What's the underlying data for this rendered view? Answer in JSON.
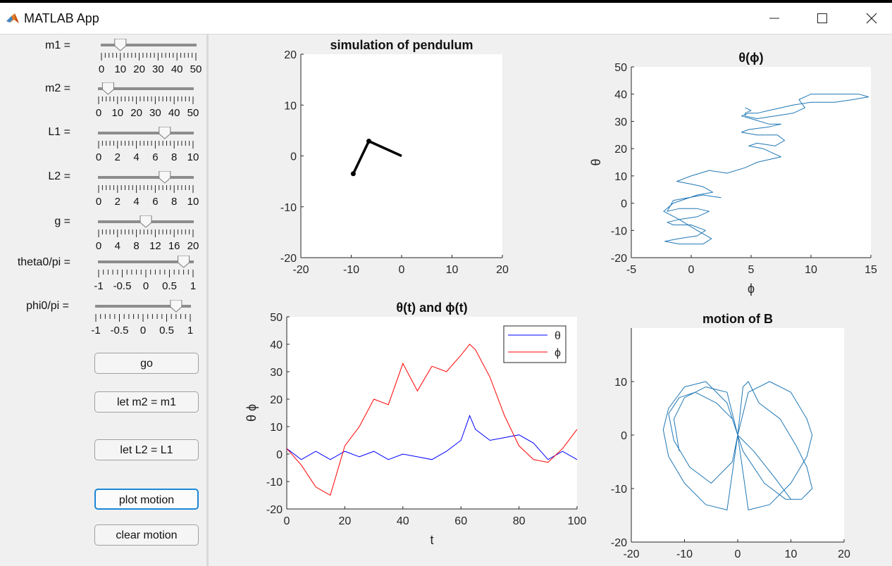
{
  "window": {
    "title": "MATLAB App"
  },
  "controls": {
    "sliders": [
      {
        "label": "m1 =",
        "value": 10,
        "min": 0,
        "max": 50,
        "ticks": [
          "0",
          "10",
          "20",
          "30",
          "40",
          "50"
        ]
      },
      {
        "label": "m2 =",
        "value": 5,
        "min": 0,
        "max": 50,
        "ticks": [
          "0",
          "10",
          "20",
          "30",
          "40",
          "50"
        ]
      },
      {
        "label": "L1 =",
        "value": 7,
        "min": 0,
        "max": 10,
        "ticks": [
          "0",
          "2",
          "4",
          "6",
          "8",
          "10"
        ]
      },
      {
        "label": "L2 =",
        "value": 7,
        "min": 0,
        "max": 10,
        "ticks": [
          "0",
          "2",
          "4",
          "6",
          "8",
          "10"
        ]
      },
      {
        "label": "g =",
        "value": 10,
        "min": 0,
        "max": 20,
        "ticks": [
          "0",
          "4",
          "8",
          "12",
          "16",
          "20"
        ]
      },
      {
        "label": "theta0/pi =",
        "value": 0.8,
        "min": -1,
        "max": 1,
        "ticks": [
          "-1",
          "-0.5",
          "0",
          "0.5",
          "1"
        ]
      },
      {
        "label": "phi0/pi =",
        "value": 0.7,
        "min": -1,
        "max": 1,
        "ticks": [
          "-1",
          "-0.5",
          "0",
          "0.5",
          "1"
        ]
      }
    ],
    "buttons": {
      "go": "go",
      "let_m2": "let m2 = m1",
      "let_l2": "let L2 = L1",
      "plot_motion": "plot motion",
      "clear_motion": "clear motion"
    }
  },
  "chart_data": [
    {
      "type": "line",
      "title": "simulation of pendulum",
      "xlim": [
        -20,
        20
      ],
      "ylim": [
        -20,
        20
      ],
      "xticks": [
        "-20",
        "-10",
        "0",
        "10",
        "20"
      ],
      "yticks": [
        "-20",
        "-10",
        "0",
        "10",
        "20"
      ],
      "x": [
        0,
        -6.5,
        -9.6
      ],
      "y": [
        0,
        2.9,
        -3.5
      ]
    },
    {
      "type": "line",
      "title": "θ(ϕ)",
      "xlabel": "ϕ",
      "ylabel": "θ",
      "xlim": [
        -5,
        15
      ],
      "ylim": [
        -20,
        50
      ],
      "xticks": [
        "-5",
        "0",
        "5",
        "10",
        "15"
      ],
      "yticks": [
        "-20",
        "-10",
        "0",
        "10",
        "20",
        "30",
        "40",
        "50"
      ],
      "x": [
        2.5,
        1.0,
        -1.5,
        -2.0,
        -1.0,
        0.5,
        1.5,
        0.5,
        -1.0,
        -2.0,
        -1.5,
        0,
        1.2,
        0.5,
        -1.0,
        -2.2,
        -1.0,
        1.0,
        1.7,
        0.5,
        -1.0,
        -2.3,
        -1.5,
        0.5,
        1.8,
        1.0,
        0,
        -1.2,
        0,
        1.5,
        3.0,
        4.5,
        5.0,
        5.5,
        6.5,
        7.5,
        7.0,
        6.0,
        4.8,
        5.5,
        7.0,
        7.8,
        7.2,
        5.5,
        4.2,
        4.8,
        6.5,
        7.5,
        6.5,
        5.0,
        4.2,
        4.8,
        5.5,
        6.5,
        8.5,
        10.0,
        12.0,
        13.5,
        14.8,
        14.0,
        12.0,
        10.0,
        9.0,
        9.5,
        8.5,
        7.0,
        5.5,
        4.5,
        4.5,
        5.0,
        4.5
      ],
      "y": [
        2,
        3,
        1,
        -3,
        -2,
        -2,
        -3,
        -5,
        -6,
        -7,
        -8,
        -8,
        -10,
        -12,
        -13,
        -14,
        -15,
        -15,
        -13,
        -10,
        -6,
        -3,
        0,
        3,
        4,
        6,
        7,
        8,
        10,
        12,
        11,
        13,
        14,
        15,
        16,
        17,
        18,
        20,
        21,
        22,
        21,
        23,
        25,
        25,
        26,
        27,
        28,
        29,
        29,
        31,
        32,
        33,
        33,
        34,
        36,
        37,
        37,
        38,
        39,
        40,
        40,
        40,
        38,
        35,
        33,
        32,
        31,
        32,
        33,
        34,
        35
      ]
    },
    {
      "type": "line",
      "title": "θ(t)  and  ϕ(t)",
      "xlabel": "t",
      "ylabel": "θ   ϕ",
      "xlim": [
        0,
        100
      ],
      "ylim": [
        -20,
        50
      ],
      "xticks": [
        "0",
        "20",
        "40",
        "60",
        "80",
        "100"
      ],
      "yticks": [
        "-20",
        "-10",
        "0",
        "10",
        "20",
        "30",
        "40",
        "50"
      ],
      "legend_position": "top-right",
      "x": [
        0,
        5,
        10,
        15,
        20,
        25,
        30,
        35,
        40,
        45,
        50,
        55,
        60,
        63,
        65,
        70,
        75,
        80,
        85,
        90,
        95,
        100
      ],
      "series": [
        {
          "name": "θ",
          "color": "#0000ff",
          "values": [
            2,
            -2,
            1,
            -2,
            1,
            -1,
            1,
            -2,
            0,
            -1,
            -2,
            1,
            5,
            14,
            9,
            5,
            6,
            7,
            4,
            -2,
            1,
            -2
          ]
        },
        {
          "name": "ϕ",
          "color": "#ff0000",
          "values": [
            2,
            -4,
            -12,
            -15,
            3,
            10,
            20,
            18,
            33,
            23,
            32,
            30,
            36,
            40,
            38,
            28,
            14,
            3,
            -2,
            -3,
            2,
            9
          ]
        }
      ]
    },
    {
      "type": "line",
      "title": "motion of B",
      "xlim": [
        -20,
        20
      ],
      "ylim": [
        -20,
        20
      ],
      "xticks": [
        "-20",
        "-10",
        "0",
        "10",
        "20"
      ],
      "yticks": [
        "-20",
        "-10",
        "0",
        "10"
      ],
      "x": [
        -11,
        -12,
        -10,
        -6,
        -2,
        0,
        2,
        6,
        10,
        13,
        14,
        13,
        10,
        6,
        2,
        0,
        -2,
        -6,
        -10,
        -13,
        -14,
        -13,
        -10,
        -6,
        -2,
        0,
        1,
        2,
        4,
        8,
        11,
        13,
        14,
        12,
        9,
        5,
        1,
        0,
        -1,
        -4,
        -8,
        -11,
        -13,
        -12,
        -9,
        -5,
        -1,
        0,
        3,
        7,
        10
      ],
      "y": [
        -3,
        3,
        7,
        9,
        8,
        0,
        8,
        10,
        8,
        3,
        0,
        -4,
        -9,
        -13,
        -14,
        0,
        -14,
        -13,
        -9,
        -4,
        1,
        5,
        9,
        10,
        6,
        0,
        9,
        10,
        6,
        3,
        -2,
        -6,
        -10,
        -12,
        -12,
        -9,
        -3,
        0,
        3,
        6,
        8,
        7,
        4,
        -1,
        -6,
        -9,
        -5,
        0,
        -3,
        -8,
        -12
      ]
    }
  ]
}
